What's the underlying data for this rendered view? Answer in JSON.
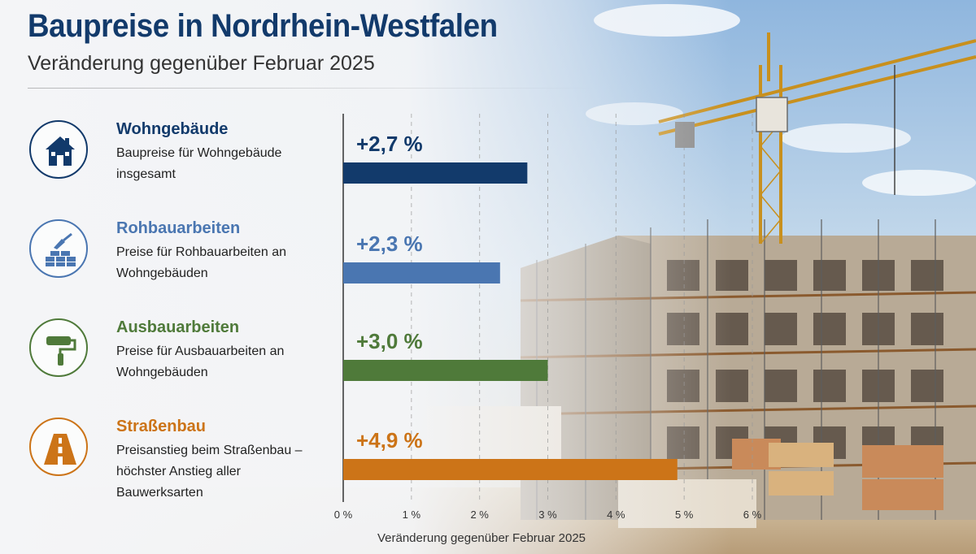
{
  "header": {
    "title": "Baupreise in Nordrhein-Westfalen",
    "subtitle": "Veränderung gegenüber Februar 2025"
  },
  "categories": [
    {
      "name": "Wohngebäude",
      "desc": "Baupreise für Wohngebäude insgesamt",
      "icon": "house-icon",
      "color": "#123a6b"
    },
    {
      "name": "Rohbauarbeiten",
      "desc": "Preise für Rohbauarbeiten an Wohngebäuden",
      "icon": "bricklaying-icon",
      "color": "#4a76b1"
    },
    {
      "name": "Ausbauarbeiten",
      "desc": "Preise für Ausbauarbeiten an Wohngebäuden",
      "icon": "paint-roller-icon",
      "color": "#4f7a3a"
    },
    {
      "name": "Straßenbau",
      "desc": "Preisanstieg beim Straßenbau – höchster Anstieg aller Bauwerksarten",
      "icon": "road-icon",
      "color": "#cc7418"
    }
  ],
  "chart_data": {
    "type": "bar",
    "orientation": "horizontal",
    "title": "Baupreise in Nordrhein-Westfalen",
    "subtitle": "Veränderung gegenüber Februar 2025",
    "xlabel": "Veränderung gegenüber Februar 2025",
    "ylabel": "",
    "categories": [
      "Wohngebäude",
      "Rohbauarbeiten",
      "Ausbauarbeiten",
      "Straßenbau"
    ],
    "values": [
      2.7,
      2.3,
      3.0,
      4.9
    ],
    "value_labels": [
      "+2,7 %",
      "+2,3 %",
      "+3,0 %",
      "+4,9 %"
    ],
    "bar_colors": [
      "#123a6b",
      "#4a76b1",
      "#4f7a3a",
      "#cc7418"
    ],
    "xlim": [
      0,
      6
    ],
    "xticks": [
      0,
      1,
      2,
      3,
      4,
      5,
      6
    ],
    "xtick_labels": [
      "0 %",
      "1 %",
      "2 %",
      "3 %",
      "4 %",
      "5 %",
      "6 %"
    ],
    "grid": "vertical dashed",
    "legend": "none"
  }
}
